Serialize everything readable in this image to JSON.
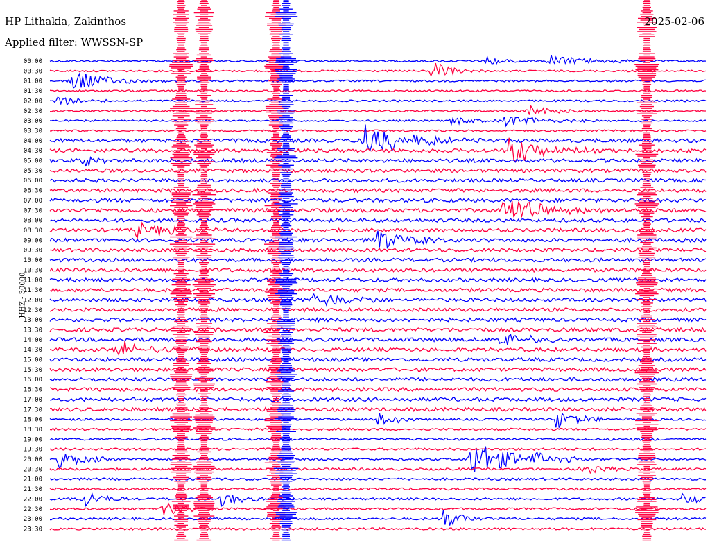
{
  "header": {
    "station": "HP Lithakia, Zakinthos",
    "filter": "Applied filter: WWSSN-SP",
    "date": "2025-02-06"
  },
  "side_label": "HHZ - 30000",
  "colors": {
    "trace_a": "#0000ff",
    "trace_b": "#ff0040",
    "background": "#ffffff"
  },
  "chart_data": {
    "type": "line",
    "title": "HP Lithakia, Zakinthos",
    "subtitle": "Applied filter: WWSSN-SP",
    "ylabel": "HHZ - 30000",
    "row_interval_minutes": 30,
    "row_labels": [
      "00:00",
      "00:30",
      "01:00",
      "01:30",
      "02:00",
      "02:30",
      "03:00",
      "03:30",
      "04:00",
      "04:30",
      "05:00",
      "05:30",
      "06:00",
      "06:30",
      "07:00",
      "07:30",
      "08:00",
      "08:30",
      "09:00",
      "09:30",
      "10:00",
      "10:30",
      "11:00",
      "11:30",
      "12:00",
      "12:30",
      "13:00",
      "13:30",
      "14:00",
      "14:30",
      "15:00",
      "15:30",
      "16:00",
      "16:30",
      "17:00",
      "17:30",
      "18:00",
      "18:30",
      "19:00",
      "19:30",
      "20:00",
      "20:30",
      "21:00",
      "21:30",
      "22:00",
      "22:30",
      "23:00",
      "23:30"
    ],
    "series_colors": [
      "#0000ff",
      "#ff0040"
    ],
    "events": [
      {
        "row": 0,
        "t": 0.66,
        "amp": 1.5,
        "dur": 0.02,
        "color": "#0000ff"
      },
      {
        "row": 0,
        "t": 0.76,
        "amp": 1.2,
        "dur": 0.06,
        "color": "#0000ff"
      },
      {
        "row": 1,
        "t": 0.58,
        "amp": 2.0,
        "dur": 0.03,
        "color": "#ff0040"
      },
      {
        "row": 2,
        "t": 0.03,
        "amp": 2.5,
        "dur": 0.05,
        "color": "#ff0040"
      },
      {
        "row": 4,
        "t": 0.01,
        "amp": 1.5,
        "dur": 0.03,
        "color": "#0000ff"
      },
      {
        "row": 5,
        "t": 0.73,
        "amp": 1.8,
        "dur": 0.03,
        "color": "#ff0040"
      },
      {
        "row": 6,
        "t": 0.69,
        "amp": 1.6,
        "dur": 0.05,
        "color": "#0000ff"
      },
      {
        "row": 6,
        "t": 0.61,
        "amp": 1.3,
        "dur": 0.03,
        "color": "#0000ff"
      },
      {
        "row": 10,
        "t": 0.05,
        "amp": 1.4,
        "dur": 0.02,
        "color": "#0000ff"
      },
      {
        "row": 8,
        "t": 0.48,
        "amp": 4.0,
        "dur": 0.06,
        "color": "#0000ff"
      },
      {
        "row": 9,
        "t": 0.7,
        "amp": 3.0,
        "dur": 0.05,
        "color": "#ff0040"
      },
      {
        "row": 15,
        "t": 0.69,
        "amp": 3.0,
        "dur": 0.06,
        "color": "#ff0040"
      },
      {
        "row": 17,
        "t": 0.13,
        "amp": 1.6,
        "dur": 0.06,
        "color": "#0000ff"
      },
      {
        "row": 18,
        "t": 0.5,
        "amp": 2.0,
        "dur": 0.05,
        "color": "#0000ff"
      },
      {
        "row": 24,
        "t": 0.4,
        "amp": 2.0,
        "dur": 0.05,
        "color": "#ff0040"
      },
      {
        "row": 28,
        "t": 0.68,
        "amp": 2.0,
        "dur": 0.04,
        "color": "#0000ff"
      },
      {
        "row": 29,
        "t": 0.1,
        "amp": 2.0,
        "dur": 0.05,
        "color": "#ff0040"
      },
      {
        "row": 36,
        "t": 0.77,
        "amp": 2.0,
        "dur": 0.04,
        "color": "#0000ff"
      },
      {
        "row": 36,
        "t": 0.5,
        "amp": 1.5,
        "dur": 0.03,
        "color": "#0000ff"
      },
      {
        "row": 40,
        "t": 0.01,
        "amp": 1.8,
        "dur": 0.04,
        "color": "#0000ff"
      },
      {
        "row": 40,
        "t": 0.64,
        "amp": 4.0,
        "dur": 0.06,
        "color": "#ff0040"
      },
      {
        "row": 40,
        "t": 0.74,
        "amp": 1.5,
        "dur": 0.03,
        "color": "#0000ff"
      },
      {
        "row": 41,
        "t": 0.81,
        "amp": 1.5,
        "dur": 0.03,
        "color": "#ff0040"
      },
      {
        "row": 44,
        "t": 0.05,
        "amp": 2.0,
        "dur": 0.03,
        "color": "#0000ff"
      },
      {
        "row": 44,
        "t": 0.26,
        "amp": 1.8,
        "dur": 0.03,
        "color": "#0000ff"
      },
      {
        "row": 44,
        "t": 0.96,
        "amp": 1.8,
        "dur": 0.03,
        "color": "#0000ff"
      },
      {
        "row": 45,
        "t": 0.17,
        "amp": 2.0,
        "dur": 0.03,
        "color": "#ff0040"
      },
      {
        "row": 46,
        "t": 0.6,
        "amp": 2.0,
        "dur": 0.03,
        "color": "#0000ff"
      }
    ],
    "teleseisms": [
      {
        "start_row": 0,
        "t": 0.2,
        "color": "#ff0040"
      },
      {
        "start_row": 0,
        "t": 0.235,
        "color": "#ff0040"
      },
      {
        "start_row": 0,
        "t": 0.345,
        "color": "#ff0040"
      },
      {
        "start_row": 0,
        "t": 0.36,
        "color": "#0000ff"
      },
      {
        "start_row": 0,
        "t": 0.91,
        "color": "#ff0040"
      }
    ]
  }
}
